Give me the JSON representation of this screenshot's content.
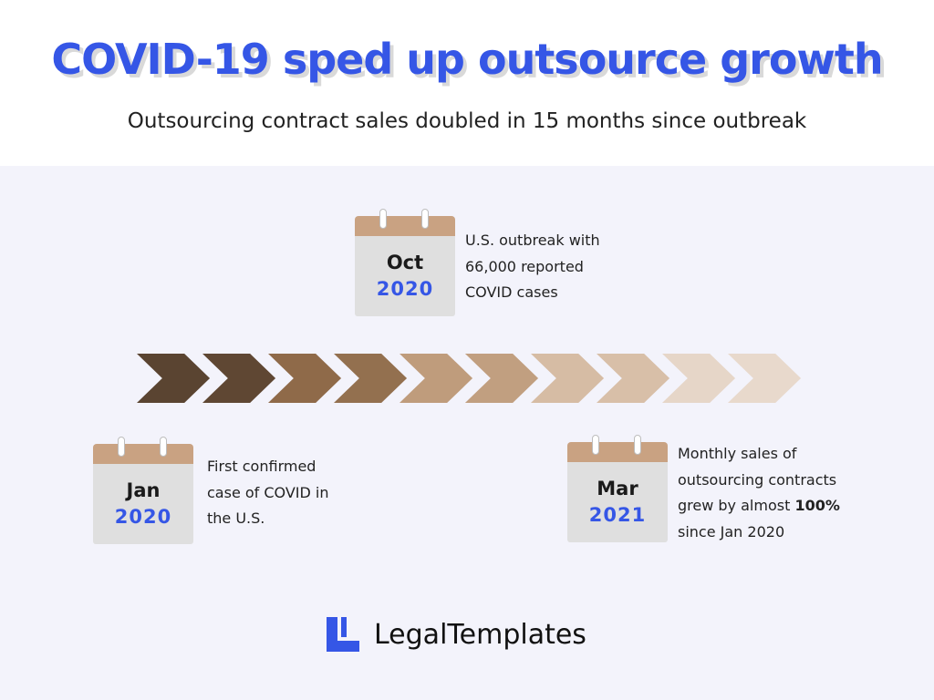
{
  "title": "COVID-19 sped up outsource growth",
  "subtitle": "Outsourcing contract sales doubled in 15 months since outbreak",
  "colors": {
    "title": "#3556e6",
    "panel_bg": "#f3f3fb",
    "calendar_header": "#c9a282",
    "year": "#3556e6",
    "logo": "#3556e6",
    "chevrons": [
      "#5a4431",
      "#5f4733",
      "#8f6a49",
      "#93704f",
      "#bf9c7c",
      "#c19f80",
      "#d6bca4",
      "#d8bfa8",
      "#e6d6c8",
      "#e8d9cc"
    ]
  },
  "timeline": {
    "chevron_count": 10
  },
  "events": {
    "oct": {
      "month": "Oct",
      "year": "2020",
      "line1": "U.S. outbreak with",
      "line2": "66,000 reported",
      "line3": "COVID cases"
    },
    "jan": {
      "month": "Jan",
      "year": "2020",
      "line1": "First confirmed",
      "line2": "case of COVID in",
      "line3": "the U.S."
    },
    "mar": {
      "month": "Mar",
      "year": "2021",
      "line1": "Monthly sales of",
      "line2": "outsourcing contracts",
      "line3_prefix": "grew by almost ",
      "line3_bold": "100%",
      "line4": "since Jan 2020"
    }
  },
  "brand": {
    "name": "LegalTemplates",
    "logo_icon": "legaltemplates-logo-icon"
  }
}
